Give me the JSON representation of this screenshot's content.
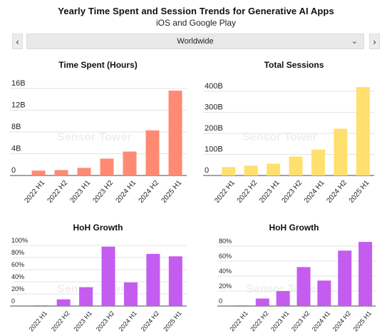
{
  "header": {
    "title": "Yearly Time Spent and Session Trends for Generative AI Apps",
    "subtitle": "iOS and Google Play"
  },
  "region_selector": {
    "value": "Worldwide",
    "prev_label": "‹",
    "next_label": "›",
    "chevron": "⌄"
  },
  "watermark": "Sensor Tower",
  "colors": {
    "time_spent": "#ff8a73",
    "sessions": "#ffdf6e",
    "growth": "#c45cf0",
    "axis": "#444444",
    "grid": "#e3e3e3"
  },
  "chart_data": [
    {
      "type": "bar",
      "title": "Time Spent (Hours)",
      "categories": [
        "2022 H1",
        "2022 H2",
        "2023 H1",
        "2023 H2",
        "2024 H1",
        "2024 H2",
        "2025 H1"
      ],
      "values": [
        0.9,
        1.0,
        1.4,
        3.1,
        4.4,
        8.3,
        15.6
      ],
      "unit": "B",
      "ylim": [
        0,
        16
      ],
      "yticks": [
        "0",
        "4B",
        "8B",
        "12B",
        "16B"
      ],
      "ytick_values": [
        0,
        4,
        8,
        12,
        16
      ],
      "grid": true
    },
    {
      "type": "bar",
      "title": "Total Sessions",
      "categories": [
        "2022 H1",
        "2022 H2",
        "2023 H1",
        "2023 H2",
        "2024 H1",
        "2024 H2",
        "2025 H1"
      ],
      "values": [
        40,
        47,
        56,
        90,
        123,
        222,
        420
      ],
      "unit": "B",
      "ylim": [
        0,
        400
      ],
      "yticks": [
        "0",
        "100B",
        "200B",
        "300B",
        "400B"
      ],
      "ytick_values": [
        0,
        100,
        200,
        300,
        400
      ],
      "grid": true
    },
    {
      "type": "bar",
      "title": "HoH Growth",
      "categories": [
        "2022 H1",
        "2022 H2",
        "2023 H1",
        "2023 H2",
        "2024 H1",
        "2024 H2",
        "2025 H1"
      ],
      "values": [
        0,
        11,
        31,
        98,
        39,
        86,
        82
      ],
      "unit": "%",
      "ylim": [
        0,
        100
      ],
      "yticks": [
        "0",
        "20%",
        "40%",
        "60%",
        "80%",
        "100%"
      ],
      "ytick_values": [
        0,
        20,
        40,
        60,
        80,
        100
      ],
      "grid": true
    },
    {
      "type": "bar",
      "title": "HoH Growth",
      "categories": [
        "2022 H1",
        "2022 H2",
        "2023 H1",
        "2023 H2",
        "2024 H1",
        "2024 H2",
        "2025 H1"
      ],
      "values": [
        0,
        10,
        20,
        52,
        34,
        74,
        86
      ],
      "unit": "%",
      "ylim": [
        0,
        80
      ],
      "yticks": [
        "0",
        "20%",
        "40%",
        "60%",
        "80%"
      ],
      "ytick_values": [
        0,
        20,
        40,
        60,
        80
      ],
      "grid": true
    }
  ]
}
